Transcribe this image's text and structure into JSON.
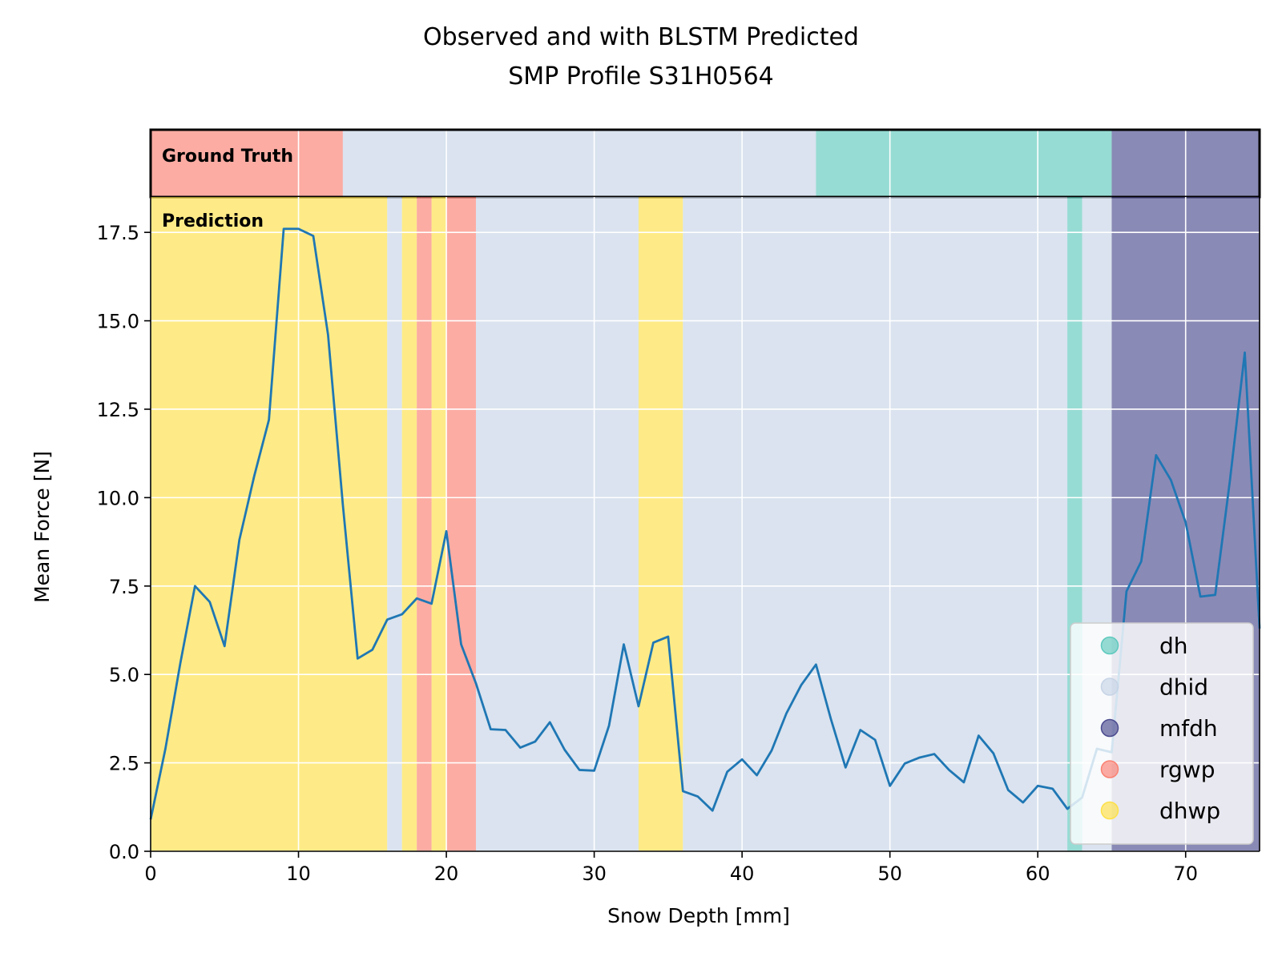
{
  "chart_data": {
    "type": "line",
    "title_line1": "Observed and with BLSTM Predicted",
    "title_line2": "SMP Profile S31H0564",
    "xlabel": "Snow Depth [mm]",
    "ylabel": "Mean Force [N]",
    "xlim": [
      0,
      75
    ],
    "ylim": [
      0,
      18.5
    ],
    "xticks": [
      0,
      10,
      20,
      30,
      40,
      50,
      60,
      70
    ],
    "yticks": [
      0.0,
      2.5,
      5.0,
      7.5,
      10.0,
      12.5,
      15.0,
      17.5
    ],
    "ytick_labels": [
      "0.0",
      "2.5",
      "5.0",
      "7.5",
      "10.0",
      "12.5",
      "15.0",
      "17.5"
    ],
    "grid": true,
    "ground_truth_label": "Ground Truth",
    "prediction_label": "Prediction",
    "line_color": "#1f77b4",
    "classes": [
      {
        "name": "dh",
        "color": "#5ec9bd"
      },
      {
        "name": "dhid",
        "color": "#c6d4e6"
      },
      {
        "name": "mfdh",
        "color": "#4b4b8f"
      },
      {
        "name": "rgwp",
        "color": "#fa8072"
      },
      {
        "name": "dhwp",
        "color": "#fde047"
      }
    ],
    "legend_position": "lower right",
    "ground_truth_segments": [
      {
        "start": 0,
        "end": 13,
        "label": "rgwp"
      },
      {
        "start": 13,
        "end": 45,
        "label": "dhid"
      },
      {
        "start": 45,
        "end": 65,
        "label": "dh"
      },
      {
        "start": 65,
        "end": 75,
        "label": "mfdh"
      }
    ],
    "prediction_segments": [
      {
        "start": 0,
        "end": 16,
        "label": "dhwp"
      },
      {
        "start": 16,
        "end": 17,
        "label": "dhid"
      },
      {
        "start": 17,
        "end": 18,
        "label": "dhwp"
      },
      {
        "start": 18,
        "end": 19,
        "label": "rgwp"
      },
      {
        "start": 19,
        "end": 20,
        "label": "dhwp"
      },
      {
        "start": 20,
        "end": 22,
        "label": "rgwp"
      },
      {
        "start": 22,
        "end": 33,
        "label": "dhid"
      },
      {
        "start": 33,
        "end": 36,
        "label": "dhwp"
      },
      {
        "start": 36,
        "end": 62,
        "label": "dhid"
      },
      {
        "start": 62,
        "end": 63,
        "label": "dh"
      },
      {
        "start": 63,
        "end": 65,
        "label": "dhid"
      },
      {
        "start": 65,
        "end": 75,
        "label": "mfdh"
      }
    ],
    "series": [
      {
        "x": [
          0,
          1,
          2,
          3,
          4,
          5,
          6,
          7,
          8,
          9,
          10,
          11,
          12,
          13,
          14,
          15,
          16,
          17,
          18,
          19,
          20,
          21,
          22,
          23,
          24,
          25,
          26,
          27,
          28,
          29,
          30,
          31,
          32,
          33,
          34,
          35,
          36,
          37,
          38,
          39,
          40,
          41,
          42,
          43,
          44,
          45,
          46,
          47,
          48,
          49,
          50,
          51,
          52,
          53,
          54,
          55,
          56,
          57,
          58,
          59,
          60,
          61,
          62,
          63,
          64,
          65,
          66,
          67,
          68,
          69,
          70,
          71,
          72,
          73,
          74,
          75
        ],
        "y": [
          0.9,
          2.9,
          5.3,
          7.5,
          7.05,
          5.8,
          8.8,
          10.6,
          12.2,
          17.6,
          17.6,
          17.4,
          14.6,
          9.8,
          5.45,
          5.7,
          6.55,
          6.7,
          7.15,
          7.0,
          9.05,
          5.85,
          4.75,
          3.45,
          3.43,
          2.93,
          3.1,
          3.65,
          2.87,
          2.3,
          2.28,
          3.55,
          5.85,
          4.1,
          5.9,
          6.07,
          1.7,
          1.55,
          1.15,
          2.25,
          2.6,
          2.15,
          2.85,
          3.9,
          4.7,
          5.28,
          3.75,
          2.37,
          3.43,
          3.15,
          1.85,
          2.48,
          2.65,
          2.75,
          2.3,
          1.95,
          3.27,
          2.77,
          1.73,
          1.38,
          1.85,
          1.77,
          1.2,
          1.52,
          2.9,
          2.8,
          7.35,
          8.2,
          11.2,
          10.5,
          9.3,
          7.2,
          7.25,
          10.5,
          14.1,
          6.3
        ]
      }
    ]
  }
}
